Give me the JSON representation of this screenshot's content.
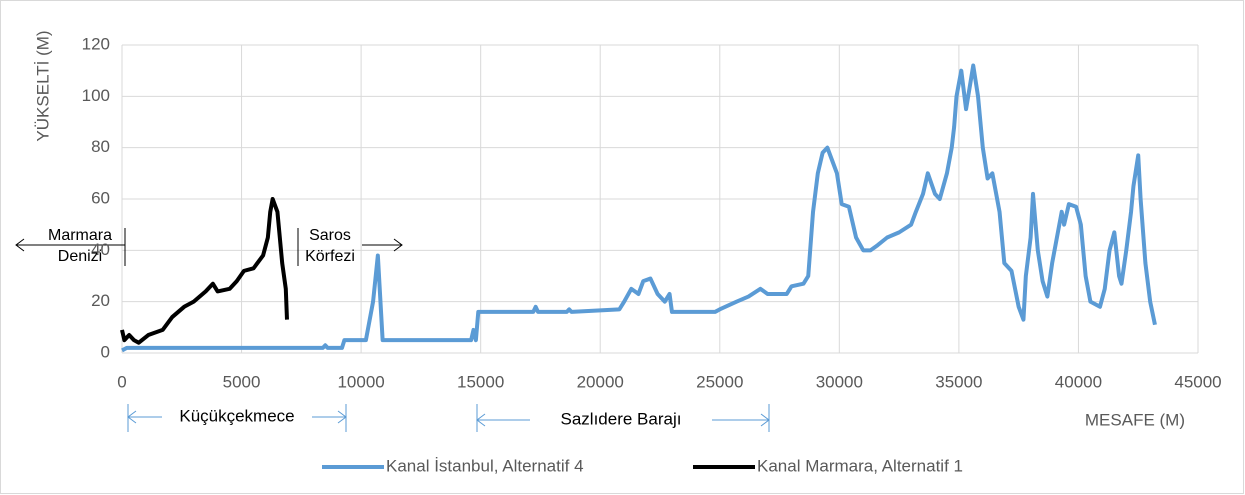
{
  "chart_data": {
    "type": "line",
    "y_label": "YÜKSELTİ (M)",
    "x_label": "MESAFE (M)",
    "annotations": [
      "Marmara",
      "Denizi",
      "Saros",
      "Körfezi",
      "Küçükçekmece",
      "Sazlıdere Barajı"
    ],
    "xlim": [
      0,
      45000
    ],
    "xticks": [
      0,
      5000,
      10000,
      15000,
      20000,
      25000,
      30000,
      35000,
      40000,
      45000
    ],
    "ylim": [
      0,
      120
    ],
    "yticks": [
      0,
      20,
      40,
      60,
      80,
      100,
      120
    ],
    "grid": true,
    "legend": "bottom",
    "series": [
      {
        "name": "Kanal İstanbul, Alternatif 4",
        "color": "#5b9bd5",
        "x": [
          0,
          200,
          8400,
          8500,
          8600,
          9200,
          9300,
          10200,
          10500,
          10700,
          10900,
          14600,
          14700,
          14800,
          14900,
          17200,
          17300,
          17400,
          18600,
          18700,
          18800,
          20800,
          21000,
          21300,
          21600,
          21800,
          22100,
          22400,
          22700,
          22900,
          23000,
          24800,
          25000,
          25700,
          26200,
          26700,
          27000,
          27800,
          28000,
          28500,
          28700,
          28900,
          29100,
          29300,
          29500,
          29700,
          29900,
          30100,
          30400,
          30700,
          31000,
          31300,
          31600,
          32000,
          32500,
          33000,
          33200,
          33500,
          33700,
          34000,
          34200,
          34500,
          34700,
          34800,
          34900,
          35100,
          35300,
          35600,
          35800,
          36000,
          36200,
          36400,
          36700,
          36900,
          37200,
          37500,
          37700,
          37800,
          38000,
          38100,
          38300,
          38500,
          38700,
          38900,
          39100,
          39300,
          39400,
          39600,
          39900,
          40100,
          40300,
          40500,
          40900,
          41100,
          41300,
          41500,
          41700,
          41800,
          42000,
          42200,
          42300,
          42500,
          42600,
          42800,
          43000,
          43200
        ],
        "values": [
          1,
          2,
          2,
          3,
          2,
          2,
          5,
          5,
          20,
          38,
          5,
          5,
          9,
          5,
          16,
          16,
          18,
          16,
          16,
          17,
          16,
          17,
          20,
          25,
          23,
          28,
          29,
          23,
          20,
          23,
          16,
          16,
          17,
          20,
          22,
          25,
          23,
          23,
          26,
          27,
          30,
          55,
          70,
          78,
          80,
          75,
          70,
          58,
          57,
          45,
          40,
          40,
          42,
          45,
          47,
          50,
          55,
          62,
          70,
          62,
          60,
          70,
          80,
          88,
          100,
          110,
          95,
          112,
          100,
          80,
          68,
          70,
          55,
          35,
          32,
          18,
          13,
          30,
          45,
          62,
          40,
          28,
          22,
          35,
          45,
          55,
          50,
          58,
          57,
          50,
          30,
          20,
          18,
          25,
          40,
          47,
          30,
          27,
          40,
          55,
          65,
          77,
          60,
          35,
          20,
          11
        ]
      },
      {
        "name": "Kanal Marmara, Alternatif 1",
        "color": "#000000",
        "x": [
          0,
          100,
          300,
          500,
          700,
          1100,
          1700,
          2100,
          2600,
          3000,
          3500,
          3800,
          4000,
          4500,
          4800,
          5100,
          5500,
          5900,
          6100,
          6200,
          6300,
          6500,
          6600,
          6700,
          6850,
          6900
        ],
        "values": [
          9,
          5,
          7,
          5,
          4,
          7,
          9,
          14,
          18,
          20,
          24,
          27,
          24,
          25,
          28,
          32,
          33,
          38,
          45,
          55,
          60,
          55,
          45,
          35,
          25,
          13
        ]
      }
    ]
  }
}
